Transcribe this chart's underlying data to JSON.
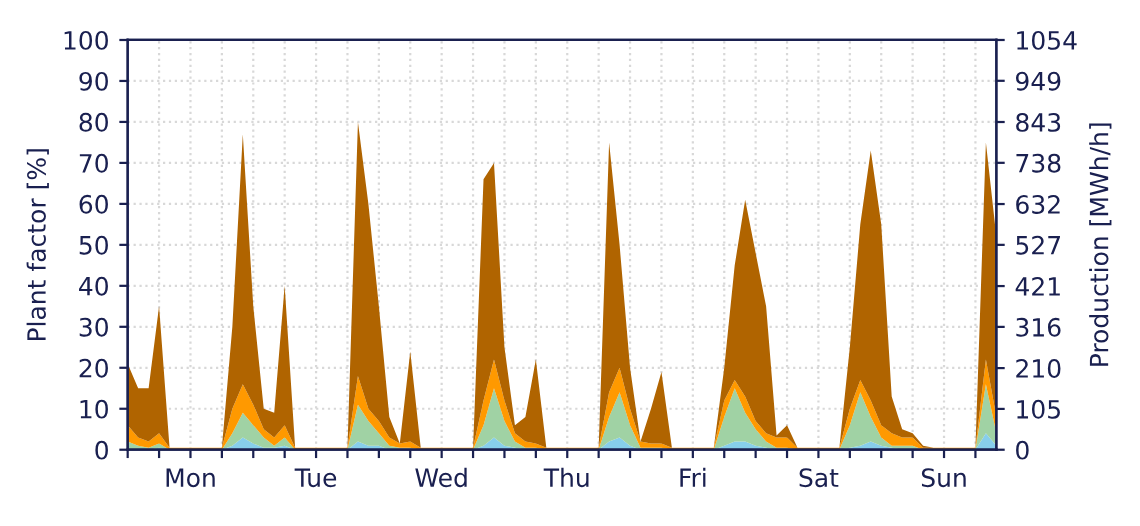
{
  "chart_data": {
    "type": "area",
    "stacked": true,
    "ylabel": "Plant factor [%]",
    "y2label": "Production [MWh/h]",
    "categories": [
      null,
      null,
      null,
      null,
      null,
      null,
      "Mon",
      null,
      null,
      null,
      null,
      null,
      null,
      null,
      null,
      null,
      null,
      null,
      "Tue",
      null,
      null,
      null,
      null,
      null,
      null,
      null,
      null,
      null,
      null,
      null,
      "Wed",
      null,
      null,
      null,
      null,
      null,
      null,
      null,
      null,
      null,
      null,
      null,
      "Thu",
      null,
      null,
      null,
      null,
      null,
      null,
      null,
      null,
      null,
      null,
      null,
      "Fri",
      null,
      null,
      null,
      null,
      null,
      null,
      null,
      null,
      null,
      null,
      null,
      "Sat",
      null,
      null,
      null,
      null,
      null,
      null,
      null,
      null,
      null,
      null,
      null,
      "Sun",
      null,
      null,
      null,
      null,
      null
    ],
    "series": [
      {
        "color": "#87ceeb",
        "values": [
          0,
          0,
          0,
          0.5,
          0,
          0,
          0,
          0,
          0,
          0,
          1,
          3,
          1.5,
          0.5,
          0.5,
          1,
          0,
          0,
          0,
          0,
          0,
          0,
          2,
          1,
          1,
          0,
          0,
          0,
          0,
          0,
          0,
          0,
          0,
          0,
          1,
          3,
          1,
          0.5,
          0,
          0,
          0,
          0,
          0,
          0,
          0,
          0,
          2,
          3,
          1,
          0,
          0,
          0,
          0,
          0,
          0,
          0,
          0,
          1,
          2,
          2,
          1,
          0.5,
          0,
          0,
          0,
          0,
          0,
          0,
          0,
          0.5,
          1,
          2,
          1,
          0.5,
          0,
          0,
          0,
          0,
          0,
          0,
          0,
          0,
          4,
          1
        ]
      },
      {
        "color": "#a0d2a4",
        "values": [
          2,
          1,
          0.5,
          1,
          0,
          0,
          0,
          0,
          0,
          0,
          3,
          6,
          4.5,
          2.5,
          0.5,
          2,
          0,
          0,
          0,
          0,
          0,
          0,
          9,
          6,
          3,
          1,
          0.5,
          0.5,
          0,
          0,
          0,
          0,
          0,
          0,
          5,
          12,
          6,
          1.5,
          0.5,
          0.5,
          0,
          0,
          0,
          0,
          0,
          0,
          6,
          11,
          5,
          0.5,
          0.5,
          0.5,
          0,
          0,
          0,
          0,
          0,
          7,
          13,
          7,
          4,
          1.5,
          0.5,
          0.5,
          0,
          0,
          0,
          0,
          0,
          5.5,
          13,
          6,
          2,
          0.5,
          1,
          1,
          0,
          0,
          0,
          0,
          0,
          0,
          12,
          3
        ]
      },
      {
        "color": "#ff9900",
        "values": [
          4,
          2,
          1.5,
          2.5,
          0.5,
          0.5,
          0.5,
          0.5,
          0.5,
          0.5,
          6,
          7,
          5,
          2,
          2,
          3,
          0.5,
          0.5,
          0.5,
          0.5,
          0.5,
          0.5,
          7,
          3,
          3,
          2,
          1,
          1.5,
          0.5,
          0.5,
          0.5,
          0.5,
          0.5,
          0.5,
          6,
          7,
          5,
          2,
          1.5,
          1,
          0.5,
          0.5,
          0.5,
          0.5,
          0.5,
          0.5,
          6,
          6,
          4,
          1.5,
          1,
          1,
          0.5,
          0.5,
          0.5,
          0.5,
          0.5,
          4,
          2,
          4,
          2,
          2,
          2.5,
          2.5,
          0.5,
          0.5,
          0.5,
          0.5,
          0.5,
          4,
          3,
          4,
          3,
          3,
          2,
          2,
          0.5,
          0.5,
          0.5,
          0.5,
          0.5,
          0.5,
          6,
          4
        ]
      },
      {
        "color": "#b06400",
        "values": [
          15,
          12,
          13,
          31,
          0,
          0,
          0,
          0,
          0,
          0,
          20,
          61,
          24,
          5,
          6,
          34,
          0,
          0,
          0,
          0,
          0,
          0,
          62,
          50,
          28,
          5,
          0,
          22,
          0,
          0,
          0,
          0,
          0,
          0,
          54,
          48,
          13,
          2,
          6,
          20.5,
          0,
          0,
          0,
          0,
          0,
          0,
          61,
          30,
          10,
          0,
          8.5,
          17.5,
          0,
          0,
          0,
          0,
          0,
          8,
          28,
          48,
          41,
          31,
          0.5,
          3,
          0,
          0,
          0,
          0,
          0,
          15,
          38,
          61,
          49,
          9,
          2,
          1,
          0.5,
          0,
          0,
          0,
          0,
          0,
          53,
          44
        ]
      }
    ],
    "ylim": [
      0,
      100
    ],
    "yticks": [
      0,
      10,
      20,
      30,
      40,
      50,
      60,
      70,
      80,
      90,
      100
    ],
    "y2lim": [
      0,
      1054
    ],
    "y2ticks": [
      0,
      105,
      210,
      316,
      421,
      527,
      632,
      738,
      843,
      949,
      1054
    ],
    "grid": true
  }
}
